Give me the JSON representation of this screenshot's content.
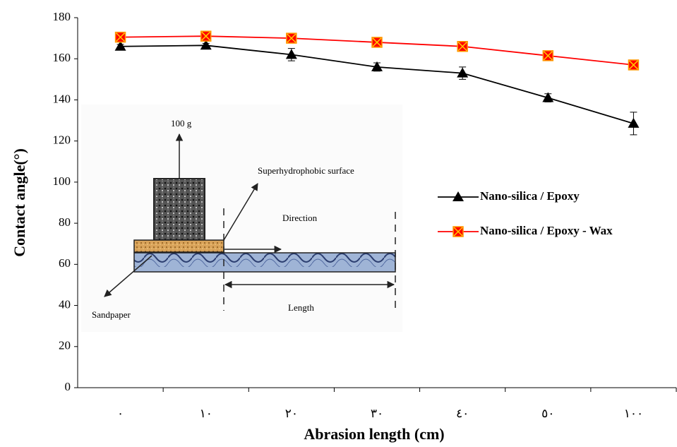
{
  "chart_data": {
    "type": "line",
    "x_label": "Abrasion length (cm)",
    "y_label": "Contact angle(°)",
    "categories": [
      "٠",
      "١٠",
      "٢٠",
      "٣٠",
      "٤٠",
      "٥٠",
      "١٠٠"
    ],
    "series": [
      {
        "name": "Nano-silica / Epoxy",
        "color": "#000000",
        "marker": "triangle",
        "values": [
          166,
          166.5,
          162,
          156,
          153,
          141,
          128.5
        ],
        "errors": [
          1,
          1,
          3,
          2,
          3,
          2,
          5.5
        ]
      },
      {
        "name": "Nano-silica / Epoxy - Wax",
        "color": "#ff0000",
        "marker": "square-x",
        "values": [
          170.5,
          171,
          170,
          168,
          166,
          161.5,
          157
        ]
      }
    ],
    "ylim": [
      0,
      180
    ],
    "yticks": [
      0,
      20,
      40,
      60,
      80,
      100,
      120,
      140,
      160,
      180
    ],
    "grid": false
  },
  "inset": {
    "weight": "100 g",
    "surface": "Superhydrophobic surface",
    "direction": "Direction",
    "length": "Length",
    "sandpaper": "Sandpaper"
  }
}
